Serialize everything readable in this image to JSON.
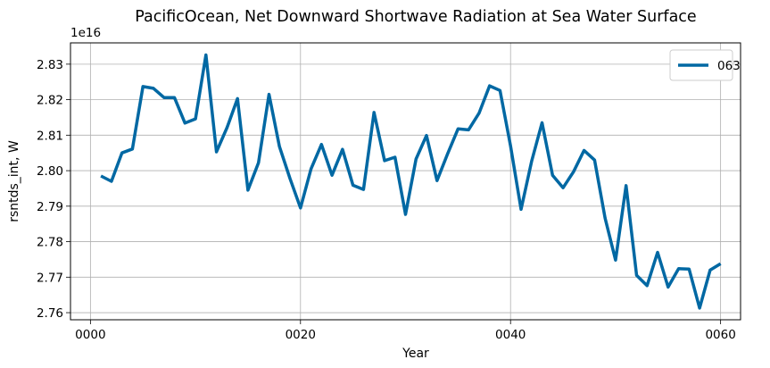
{
  "chart_data": {
    "type": "line",
    "title": "PacificOcean, Net Downward Shortwave Radiation at Sea Water Surface",
    "xlabel": "Year",
    "ylabel": "rsntds_int, W",
    "y_offset_label": "1e16",
    "xlim": [
      -1.9,
      61.9
    ],
    "ylim": [
      2.758,
      2.836
    ],
    "x_ticks": [
      0,
      20,
      40,
      60
    ],
    "x_tick_labels": [
      "0000",
      "0020",
      "0040",
      "0060"
    ],
    "y_ticks": [
      2.76,
      2.77,
      2.78,
      2.79,
      2.8,
      2.81,
      2.82,
      2.83
    ],
    "y_tick_labels": [
      "2.76",
      "2.77",
      "2.78",
      "2.79",
      "2.80",
      "2.81",
      "2.82",
      "2.83"
    ],
    "grid": true,
    "legend_position": "top-right",
    "series": [
      {
        "name": "063",
        "color": "#0068a3",
        "x": [
          1,
          2,
          3,
          4,
          5,
          6,
          7,
          8,
          9,
          10,
          11,
          12,
          13,
          14,
          15,
          16,
          17,
          18,
          19,
          20,
          21,
          22,
          23,
          24,
          25,
          26,
          27,
          28,
          29,
          30,
          31,
          32,
          33,
          34,
          35,
          36,
          37,
          38,
          39,
          40,
          41,
          42,
          43,
          44,
          45,
          46,
          47,
          48,
          49,
          50,
          51,
          52,
          53,
          54,
          55,
          56,
          57,
          58,
          59,
          60
        ],
        "values": [
          2.7985,
          2.797,
          2.805,
          2.8061,
          2.8237,
          2.8232,
          2.8206,
          2.8206,
          2.8134,
          2.8146,
          2.8326,
          2.8053,
          2.8121,
          2.8203,
          2.7945,
          2.8022,
          2.8215,
          2.8068,
          2.7978,
          2.7895,
          2.8005,
          2.8074,
          2.7987,
          2.806,
          2.7959,
          2.7947,
          2.8164,
          2.8028,
          2.8038,
          2.7877,
          2.8033,
          2.8099,
          2.7972,
          2.8047,
          2.8118,
          2.8115,
          2.8162,
          2.8239,
          2.8226,
          2.807,
          2.7891,
          2.8026,
          2.8135,
          2.7987,
          2.7952,
          2.7997,
          2.8057,
          2.803,
          2.7866,
          2.7748,
          2.7958,
          2.7705,
          2.7676,
          2.777,
          2.7672,
          2.7724,
          2.7723,
          2.7613,
          2.772,
          2.7738
        ]
      }
    ]
  }
}
